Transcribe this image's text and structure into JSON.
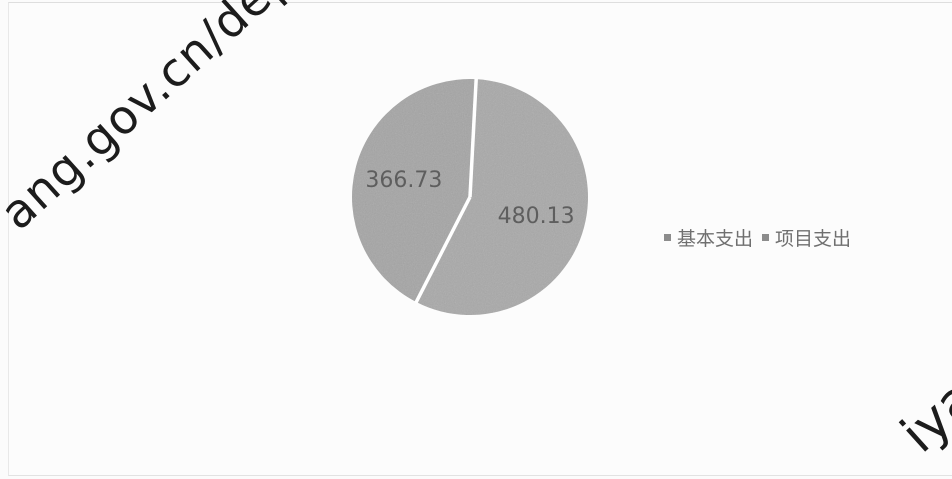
{
  "chart_data": {
    "type": "pie",
    "title": "",
    "slices": [
      {
        "label": "基本支出",
        "value": 480.13,
        "data_label": "480.13",
        "color": "#a9a9a9"
      },
      {
        "label": "项目支出",
        "value": 366.73,
        "data_label": "366.73",
        "color": "#a5a5a5"
      }
    ],
    "start_angle_deg": 3,
    "direction": "clockwise",
    "separator_color": "#ffffff",
    "legend": {
      "position": "right",
      "entries": [
        "基本支出",
        "项目支出"
      ],
      "swatch_color": "#8c8c8c"
    }
  },
  "watermarks": {
    "main_text": "ang.gov.cn/department.a",
    "corner_text": "iya"
  }
}
